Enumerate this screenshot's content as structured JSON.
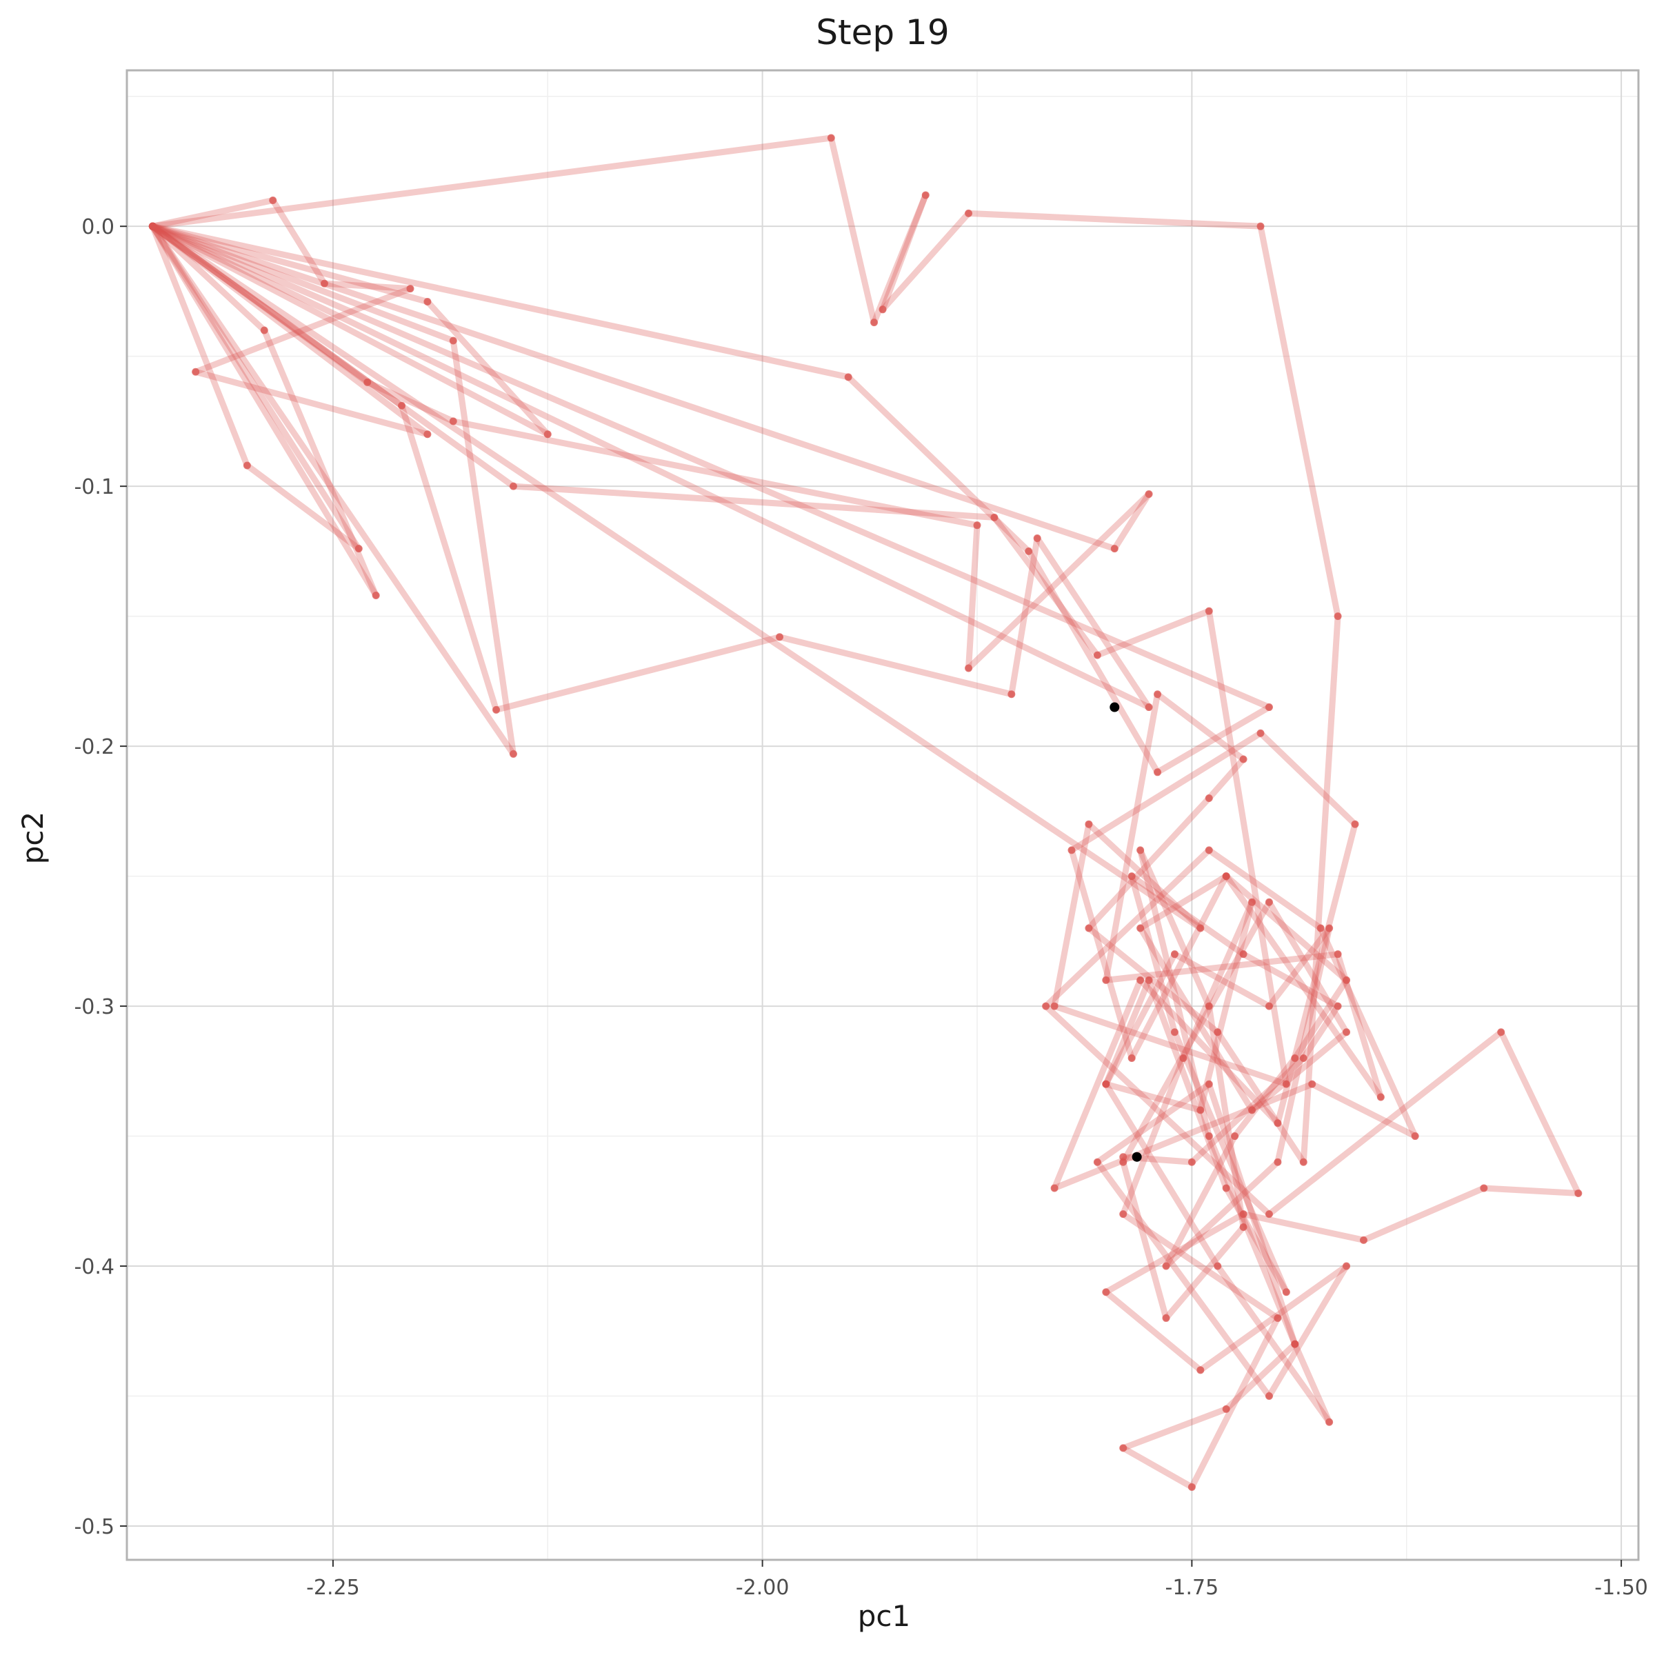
{
  "chart_data": {
    "type": "line",
    "title": "Step 19",
    "xlabel": "pc1",
    "ylabel": "pc2",
    "xlim": [
      -2.37,
      -1.49
    ],
    "ylim": [
      -0.513,
      0.06
    ],
    "x_ticks": [
      -2.25,
      -2.0,
      -1.75,
      -1.5
    ],
    "x_tick_labels": [
      "-2.25",
      "-2.00",
      "-1.75",
      "-1.50"
    ],
    "y_ticks": [
      0.0,
      -0.1,
      -0.2,
      -0.3,
      -0.4,
      -0.5
    ],
    "y_tick_labels": [
      "0.0",
      "-0.1",
      "-0.2",
      "-0.3",
      "-0.4",
      "-0.5"
    ],
    "grid": true,
    "legend": "none",
    "colors": {
      "path": "#d9534f",
      "highlight": "#000000",
      "grid": "#d9d9d9",
      "frame": "#b3b3b3"
    },
    "series": [
      {
        "x": [
          -2.355,
          -2.285,
          -2.255,
          -2.205,
          -2.33,
          -2.195,
          -2.355,
          -2.195,
          -2.125,
          -2.355,
          -2.3,
          -2.235,
          -2.355,
          -2.29,
          -2.225,
          -2.355,
          -2.18,
          -2.145,
          -2.355,
          -2.23,
          -2.18,
          -1.875,
          -1.88,
          -1.775,
          -1.795,
          -2.355,
          -2.21,
          -2.155,
          -1.99,
          -1.855,
          -1.84,
          -1.775,
          -2.355,
          -2.145,
          -1.865,
          -1.805,
          -1.74,
          -1.695,
          -1.83,
          -1.81,
          -1.745,
          -2.355,
          -1.95,
          -1.845,
          -1.77,
          -1.705,
          -2.355,
          -1.96,
          -1.935,
          -1.905,
          -1.93,
          -1.88,
          -1.71,
          -1.665,
          -1.685,
          -1.735,
          -1.81,
          -1.74,
          -1.72,
          -1.77,
          -1.8,
          -1.665,
          -1.64,
          -1.73,
          -1.785,
          -1.82,
          -1.71,
          -1.655,
          -1.7,
          -1.78,
          -1.83,
          -1.68,
          -1.62,
          -1.675,
          -1.74,
          -1.835,
          -1.705,
          -1.57,
          -1.525,
          -1.58,
          -1.65,
          -1.72,
          -1.8,
          -1.745,
          -1.66,
          -1.705,
          -1.805,
          -1.74,
          -1.69,
          -1.73,
          -1.79,
          -1.75,
          -1.7,
          -1.79,
          -1.755,
          -1.715,
          -1.745,
          -1.8,
          -1.76,
          -1.705,
          -1.67,
          -1.7,
          -1.765,
          -1.725,
          -1.69,
          -1.66,
          -1.73,
          -1.78,
          -1.715,
          -1.66,
          -1.705,
          -1.79,
          -1.765,
          -1.72,
          -1.74,
          -1.78,
          -1.74,
          -1.69,
          -1.67,
          -1.735,
          -1.8,
          -1.775,
          -1.73,
          -1.695,
          -1.76,
          -1.785,
          -1.72,
          -1.665,
          -1.685,
          -1.75,
          -1.79
        ],
        "y": [
          0.0,
          0.01,
          -0.022,
          -0.024,
          -0.056,
          -0.08,
          0.0,
          -0.029,
          -0.08,
          0.0,
          -0.092,
          -0.124,
          0.0,
          -0.04,
          -0.142,
          0.0,
          -0.044,
          -0.203,
          0.0,
          -0.06,
          -0.075,
          -0.115,
          -0.17,
          -0.103,
          -0.124,
          0.0,
          -0.069,
          -0.186,
          -0.158,
          -0.18,
          -0.12,
          -0.185,
          0.0,
          -0.1,
          -0.112,
          -0.165,
          -0.148,
          -0.33,
          -0.3,
          -0.23,
          -0.27,
          0.0,
          -0.058,
          -0.125,
          -0.21,
          -0.185,
          0.0,
          0.034,
          -0.037,
          0.012,
          -0.032,
          0.005,
          0.0,
          -0.15,
          -0.36,
          -0.31,
          -0.27,
          -0.22,
          -0.205,
          -0.18,
          -0.29,
          -0.28,
          -0.335,
          -0.25,
          -0.32,
          -0.24,
          -0.195,
          -0.23,
          -0.345,
          -0.29,
          -0.37,
          -0.33,
          -0.35,
          -0.27,
          -0.24,
          -0.3,
          -0.38,
          -0.31,
          -0.372,
          -0.37,
          -0.39,
          -0.38,
          -0.41,
          -0.44,
          -0.4,
          -0.45,
          -0.36,
          -0.33,
          -0.43,
          -0.455,
          -0.47,
          -0.485,
          -0.42,
          -0.38,
          -0.32,
          -0.26,
          -0.34,
          -0.33,
          -0.28,
          -0.3,
          -0.27,
          -0.36,
          -0.4,
          -0.35,
          -0.32,
          -0.29,
          -0.25,
          -0.27,
          -0.34,
          -0.31,
          -0.26,
          -0.36,
          -0.42,
          -0.385,
          -0.3,
          -0.24,
          -0.35,
          -0.43,
          -0.46,
          -0.4,
          -0.33,
          -0.29,
          -0.37,
          -0.41,
          -0.31,
          -0.25,
          -0.28,
          -0.3,
          -0.32,
          -0.36,
          -0.358
        ]
      }
    ],
    "highlight_points": [
      {
        "x": -1.795,
        "y": -0.185
      },
      {
        "x": -1.782,
        "y": -0.358
      }
    ]
  }
}
